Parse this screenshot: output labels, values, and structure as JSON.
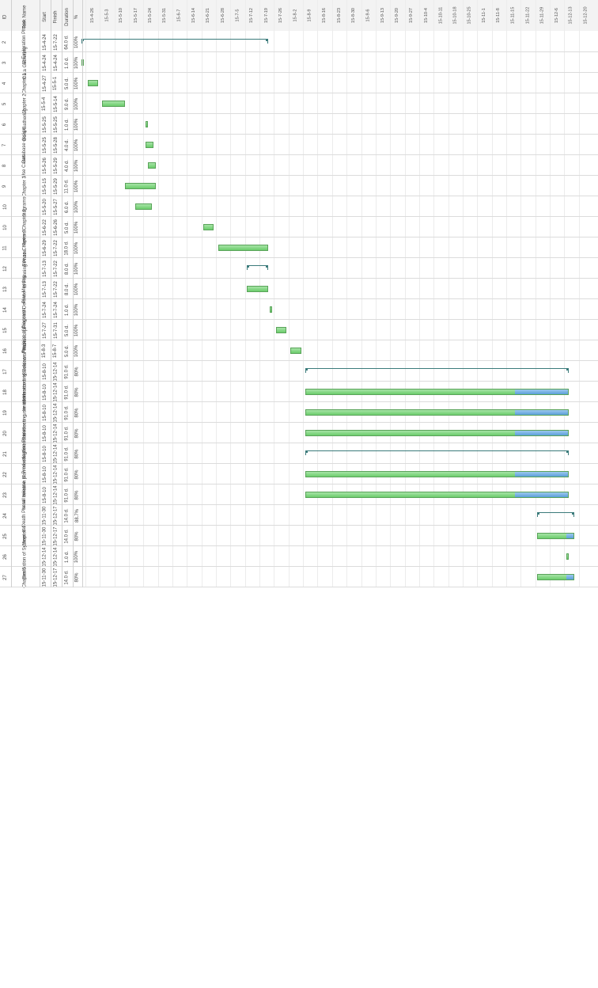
{
  "headers": {
    "id": "ID",
    "task_name": "Task Name",
    "start": "Start",
    "finish": "Finish",
    "duration": "Duration",
    "complete": "%"
  },
  "timeline": [
    "15-4-26",
    "15-5-3",
    "15-5-10",
    "15-5-17",
    "15-5-24",
    "15-5-31",
    "15-6-7",
    "15-6-14",
    "15-6-21",
    "15-6-28",
    "15-7-5",
    "15-7-12",
    "15-7-19",
    "15-7-26",
    "15-8-2",
    "15-8-9",
    "15-8-16",
    "15-8-23",
    "15-8-30",
    "15-9-6",
    "15-9-13",
    "15-9-20",
    "15-9-27",
    "15-10-4",
    "15-10-11",
    "15-10-18",
    "15-10-25",
    "15-11-1",
    "15-11-8",
    "15-11-15",
    "15-11-22",
    "15-11-29",
    "15-12-6",
    "15-12-13",
    "15-12-20"
  ],
  "timeline_start": "2015-04-26",
  "tasks": [
    {
      "id": "2",
      "name": "⊟ Exploration Phase",
      "start": "15-4-24",
      "finish": "15-7-22",
      "duration": "64.0 d.",
      "complete": "100%",
      "type": "summary",
      "progress": 1.0
    },
    {
      "id": "3",
      "name": "Data Gathering",
      "start": "15-4-24",
      "finish": "15-4-24",
      "duration": "1.0 d.",
      "complete": "100%",
      "type": "task",
      "progress": 1.0
    },
    {
      "id": "4",
      "name": "Chapter 1",
      "start": "15-4-27",
      "finish": "15-5-1",
      "duration": "5.0 d.",
      "complete": "100%",
      "type": "task",
      "progress": 1.0
    },
    {
      "id": "5",
      "name": "Chapter 2",
      "start": "15-5-4",
      "finish": "15-5-14",
      "duration": "9.0 d.",
      "complete": "100%",
      "type": "task",
      "progress": 1.0
    },
    {
      "id": "6",
      "name": "Data Gathering",
      "start": "15-5-25",
      "finish": "15-5-25",
      "duration": "1.0 d.",
      "complete": "100%",
      "type": "task",
      "progress": 1.0
    },
    {
      "id": "7",
      "name": "Database design",
      "start": "15-5-25",
      "finish": "15-5-28",
      "duration": "4.0 d.",
      "complete": "100%",
      "type": "task",
      "progress": 1.0
    },
    {
      "id": "8",
      "name": "Use Cases",
      "start": "15-5-26",
      "finish": "15-5-29",
      "duration": "4.0 d.",
      "complete": "100%",
      "type": "task",
      "progress": 1.0
    },
    {
      "id": "9",
      "name": "Chapter 3",
      "start": "15-5-15",
      "finish": "15-5-29",
      "duration": "11.0 d.",
      "complete": "100%",
      "type": "task",
      "progress": 1.0
    },
    {
      "id": "10",
      "name": "Diagrams",
      "start": "15-5-20",
      "finish": "15-5-27",
      "duration": "6.0 d.",
      "complete": "100%",
      "type": "task",
      "progress": 1.0
    },
    {
      "id": "10",
      "name": "Revise Chapter 2",
      "start": "15-6-22",
      "finish": "15-6-26",
      "duration": "5.0 d.",
      "complete": "100%",
      "type": "task",
      "progress": 1.0
    },
    {
      "id": "11",
      "name": "Revise Chapter 3",
      "start": "15-6-29",
      "finish": "15-7-22",
      "duration": "18.0 d.",
      "complete": "100%",
      "type": "task",
      "progress": 1.0
    },
    {
      "id": "12",
      "name": "⊟ Planning Phase",
      "start": "15-7-13",
      "finish": "15-7-22",
      "duration": "8.0 d.",
      "complete": "100%",
      "type": "summary",
      "progress": 1.0
    },
    {
      "id": "13",
      "name": "Plan Meeting",
      "start": "15-7-13",
      "finish": "15-7-22",
      "duration": "8.0 d.",
      "complete": "100%",
      "type": "task",
      "progress": 1.0
    },
    {
      "id": "14",
      "name": "Proposal Defense",
      "start": "15-7-24",
      "finish": "15-7-24",
      "duration": "1.0 d.",
      "complete": "100%",
      "type": "task",
      "progress": 1.0
    },
    {
      "id": "15",
      "name": "Revision of Diagrams",
      "start": "15-7-27",
      "finish": "15-7-31",
      "duration": "5.0 d.",
      "complete": "100%",
      "type": "task",
      "progress": 1.0
    },
    {
      "id": "16",
      "name": "Revision of manuscript",
      "start": "15-8-3",
      "finish": "15-8-7",
      "duration": "5.0 d.",
      "complete": "100%",
      "type": "task",
      "progress": 1.0
    },
    {
      "id": "17",
      "name": "⊟ Iterations to Release Phase",
      "start": "15-8-10",
      "finish": "15-12-14",
      "duration": "91.0 d.",
      "complete": "80%",
      "type": "summary",
      "progress": 0.8
    },
    {
      "id": "18",
      "name": "Iterations - coding",
      "start": "15-8-10",
      "finish": "15-12-14",
      "duration": "91.0 d.",
      "complete": "80%",
      "type": "task",
      "progress": 0.8
    },
    {
      "id": "19",
      "name": "Iterations - user interface",
      "start": "15-8-10",
      "finish": "15-12-14",
      "duration": "91.0 d.",
      "complete": "80%",
      "type": "task",
      "progress": 0.8
    },
    {
      "id": "20",
      "name": "Iterations - testing",
      "start": "15-8-10",
      "finish": "15-12-14",
      "duration": "91.0 d.",
      "complete": "80%",
      "type": "task",
      "progress": 0.8
    },
    {
      "id": "21",
      "name": "⊟ Productization Phase",
      "start": "15-8-10",
      "finish": "15-12-14",
      "duration": "91.0 d.",
      "complete": "80%",
      "type": "summary",
      "progress": 0.8
    },
    {
      "id": "22",
      "name": "Iteration plan meeting",
      "start": "15-8-10",
      "finish": "15-12-14",
      "duration": "91.0 d.",
      "complete": "80%",
      "type": "task",
      "progress": 0.8
    },
    {
      "id": "23",
      "name": "small release",
      "start": "15-8-10",
      "finish": "15-12-14",
      "duration": "91.0 d.",
      "complete": "80%",
      "type": "task",
      "progress": 0.8
    },
    {
      "id": "24",
      "name": "⊟ Death Phase",
      "start": "15-11-30",
      "finish": "15-12-17",
      "duration": "14.0 d.",
      "complete": "88.7%",
      "type": "summary",
      "progress": 0.9
    },
    {
      "id": "25",
      "name": "Chapter 4",
      "start": "15-11-30",
      "finish": "15-12-17",
      "duration": "14.0 d.",
      "complete": "80%",
      "type": "task",
      "progress": 0.8
    },
    {
      "id": "26",
      "name": "Evaluation of System",
      "start": "15-12-14",
      "finish": "15-12-14",
      "duration": "1.0 d.",
      "complete": "100%",
      "type": "task",
      "progress": 1.0
    },
    {
      "id": "27",
      "name": "Chapter 5",
      "start": "15-11-30",
      "finish": "15-12-17",
      "duration": "14.0 d.",
      "complete": "80%",
      "type": "task",
      "progress": 0.8
    }
  ]
}
